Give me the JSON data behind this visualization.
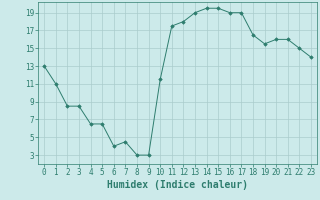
{
  "x": [
    0,
    1,
    2,
    3,
    4,
    5,
    6,
    7,
    8,
    9,
    10,
    11,
    12,
    13,
    14,
    15,
    16,
    17,
    18,
    19,
    20,
    21,
    22,
    23
  ],
  "y": [
    13,
    11,
    8.5,
    8.5,
    6.5,
    6.5,
    4,
    4.5,
    3,
    3,
    11.5,
    17.5,
    18,
    19,
    19.5,
    19.5,
    19,
    19,
    16.5,
    15.5,
    16,
    16,
    15,
    14
  ],
  "line_color": "#2e7d6e",
  "marker": "D",
  "marker_size": 1.8,
  "bg_color": "#cceaea",
  "grid_color": "#aacccc",
  "tick_color": "#2e7d6e",
  "xlabel": "Humidex (Indice chaleur)",
  "xlabel_fontsize": 7,
  "xlabel_color": "#2e7d6e",
  "xlim": [
    -0.5,
    23.5
  ],
  "ylim": [
    2,
    20.2
  ],
  "yticks": [
    3,
    5,
    7,
    9,
    11,
    13,
    15,
    17,
    19
  ],
  "xticks": [
    0,
    1,
    2,
    3,
    4,
    5,
    6,
    7,
    8,
    9,
    10,
    11,
    12,
    13,
    14,
    15,
    16,
    17,
    18,
    19,
    20,
    21,
    22,
    23
  ],
  "tick_fontsize": 5.5
}
